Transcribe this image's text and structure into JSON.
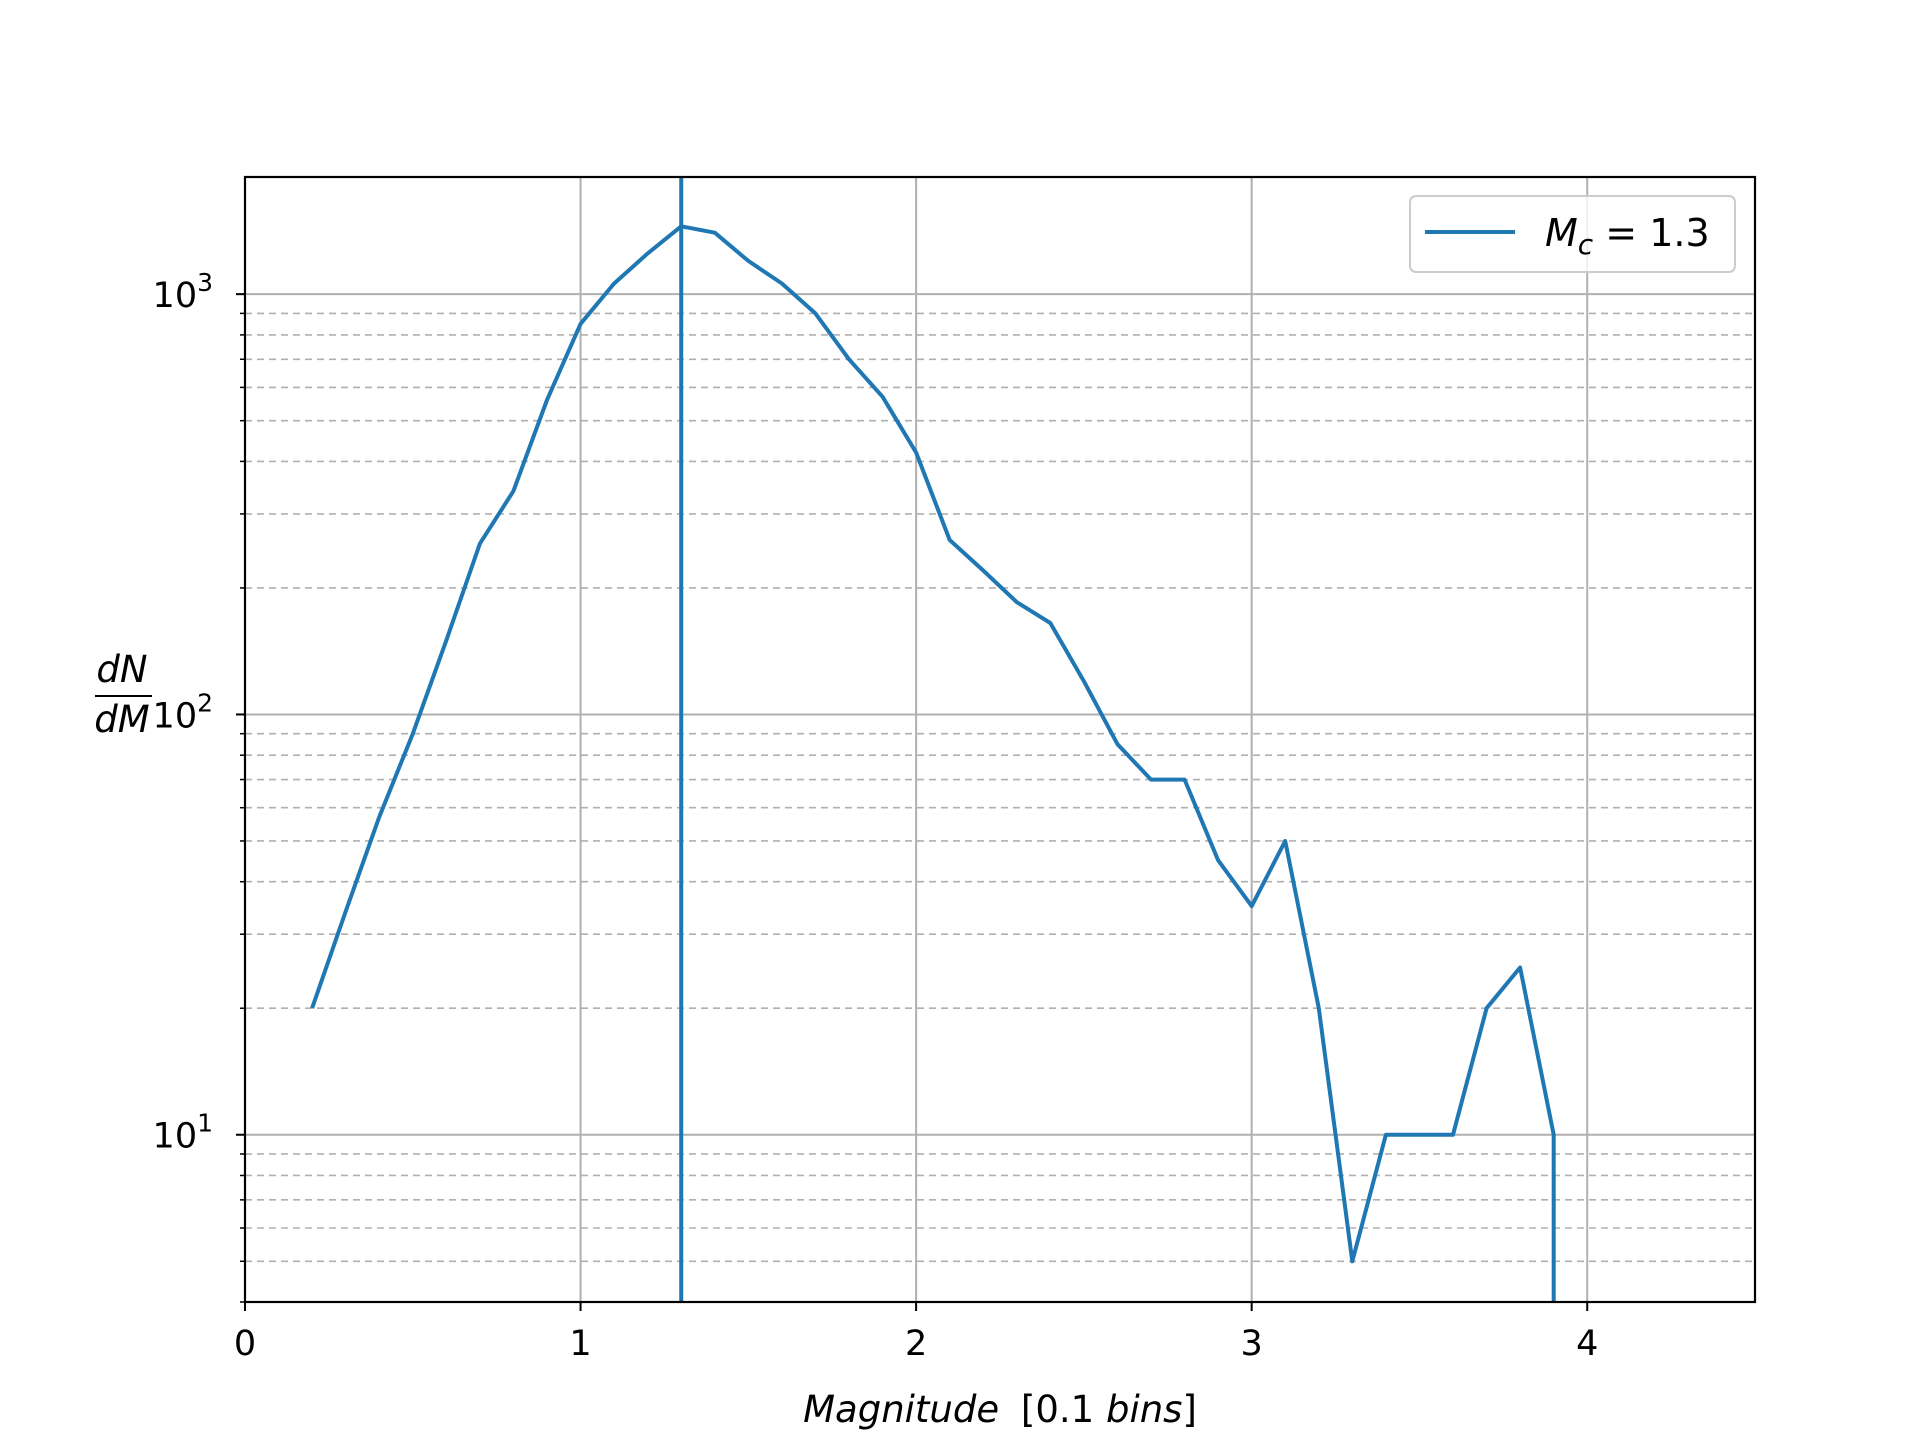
{
  "chart_data": {
    "type": "line",
    "title": "",
    "xlabel": {
      "italic": "Magnitude",
      "rest": "[0.1 ",
      "italic2": "bins",
      "close": "]"
    },
    "ylabel": {
      "numerator": "dN",
      "denominator": "dM"
    },
    "xlim": [
      0,
      4.5
    ],
    "ylim": [
      4,
      1900
    ],
    "yscale": "log",
    "grid": true,
    "minor_grid_y": "dashed",
    "legend_position": "top-right",
    "x_ticks": [
      "0",
      "1",
      "2",
      "3",
      "4"
    ],
    "y_ticks": [
      {
        "base": "10",
        "exp": "1",
        "value": 10
      },
      {
        "base": "10",
        "exp": "2",
        "value": 100
      },
      {
        "base": "10",
        "exp": "3",
        "value": 1000
      }
    ],
    "colors": {
      "series": "#1f77b4",
      "grid": "#b0b0b0"
    },
    "series": [
      {
        "name": "M_c = 1.3",
        "x": [
          0.2,
          0.3,
          0.4,
          0.5,
          0.6,
          0.7,
          0.8,
          0.9,
          1.0,
          1.1,
          1.2,
          1.3,
          1.4,
          1.5,
          1.6,
          1.7,
          1.8,
          1.9,
          2.0,
          2.1,
          2.2,
          2.3,
          2.4,
          2.5,
          2.6,
          2.7,
          2.8,
          2.9,
          3.0,
          3.1,
          3.2,
          3.3,
          3.4,
          3.5,
          3.6,
          3.7,
          3.8,
          3.9,
          3.9
        ],
        "y": [
          20,
          34,
          57,
          90,
          150,
          255,
          340,
          560,
          850,
          1060,
          1250,
          1450,
          1400,
          1200,
          1060,
          900,
          700,
          570,
          420,
          260,
          220,
          185,
          165,
          120,
          85,
          70,
          70,
          45,
          35,
          50,
          20,
          5,
          10,
          10,
          10,
          20,
          25,
          10,
          4
        ]
      }
    ],
    "vline": {
      "x": 1.3
    },
    "legend": {
      "symbol": "M",
      "subscript": "c",
      "equals": " = 1.3"
    }
  }
}
